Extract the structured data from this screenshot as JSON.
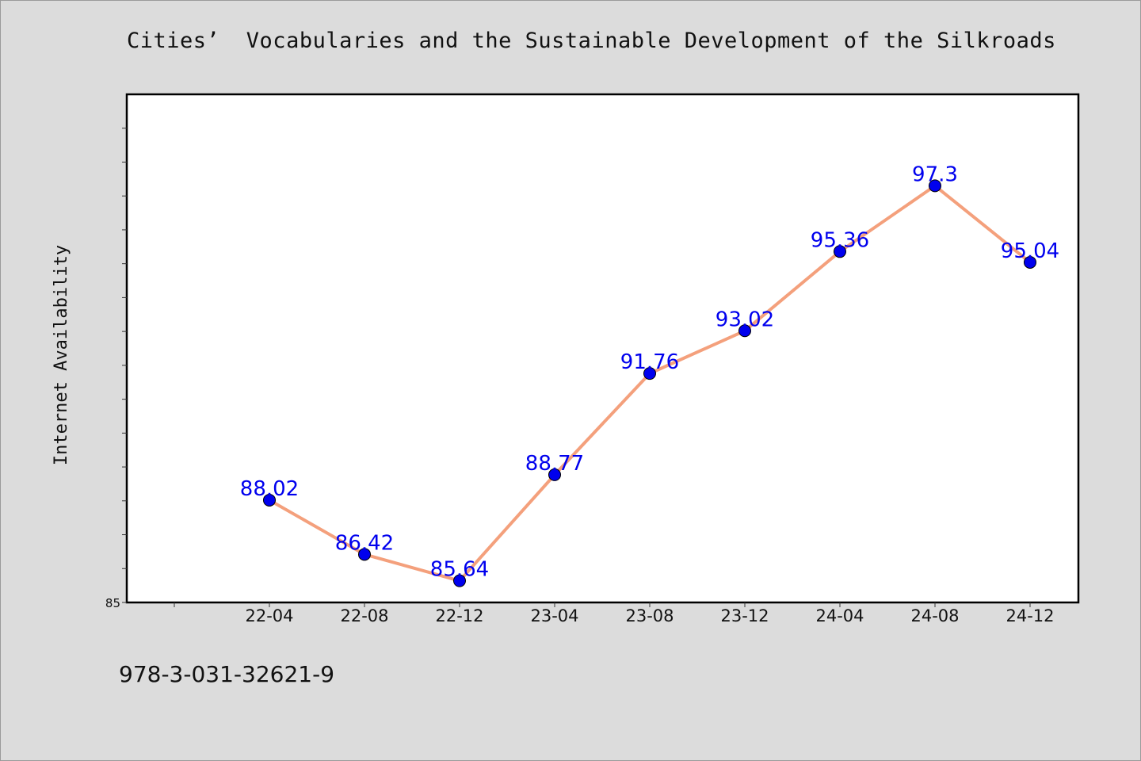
{
  "chart_data": {
    "type": "line",
    "title": "Cities’  Vocabularies and the Sustainable Development of the Silkroads",
    "xlabel": "",
    "ylabel": "Internet Availability",
    "categories": [
      "22-04",
      "22-08",
      "22-12",
      "23-04",
      "23-08",
      "23-12",
      "24-04",
      "24-08",
      "24-12"
    ],
    "series": [
      {
        "values": [
          88.02,
          86.42,
          85.64,
          88.77,
          91.76,
          93.02,
          95.36,
          97.3,
          95.04
        ]
      }
    ],
    "data_labels": [
      "88.02",
      "86.42",
      "85.64",
      "88.77",
      "91.76",
      "93.02",
      "95.36",
      "97.3",
      "95.04"
    ],
    "y_tick_labels": [
      "85"
    ],
    "ylim": [
      85,
      100
    ],
    "grid": false,
    "line_color": "#f4a07c",
    "marker_color": "#0000ee",
    "label_color": "#0000ee"
  },
  "footer_text": "978-3-031-32621-9"
}
